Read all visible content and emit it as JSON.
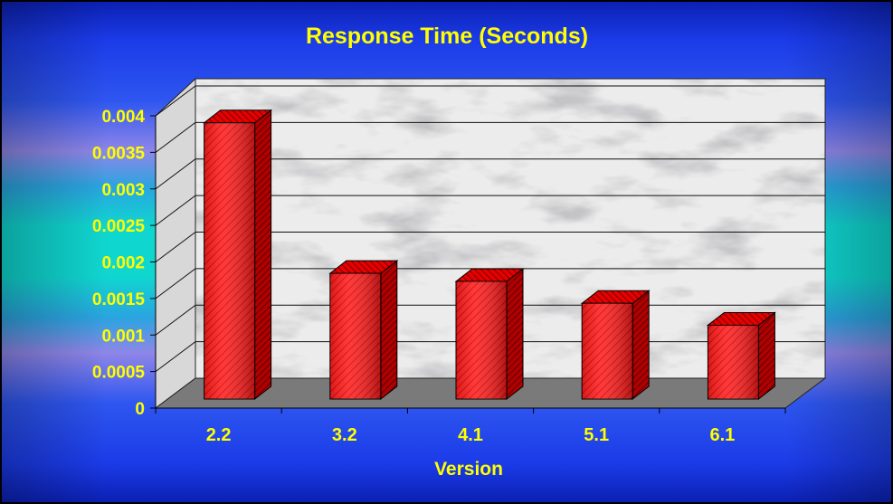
{
  "chart_data": {
    "type": "bar",
    "title": "Response Time (Seconds)",
    "xlabel": "Version",
    "ylabel": "",
    "categories": [
      "2.2",
      "3.2",
      "4.1",
      "5.1",
      "6.1"
    ],
    "values": [
      0.00378,
      0.00172,
      0.00161,
      0.00131,
      0.00101
    ],
    "ylim": [
      0,
      0.004
    ],
    "yticks": [
      "0",
      "0.0005",
      "0.001",
      "0.0015",
      "0.002",
      "0.0025",
      "0.003",
      "0.0035",
      "0.004"
    ],
    "grid": true,
    "legend": "none",
    "colors": {
      "bar_front": "#ff1a1a",
      "bar_side": "#a80000",
      "bar_top": "#e00000",
      "text": "#ffff00",
      "floor": "#7a7a7a",
      "background_edge": "#1b32d8",
      "background_mid": "#13d6d0"
    }
  }
}
